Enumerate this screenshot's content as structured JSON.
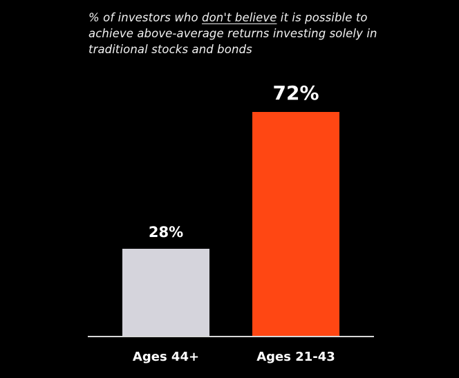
{
  "chart_data": {
    "type": "bar",
    "title_parts": [
      "% of investors who ",
      "don't believe",
      " it is possible to achieve above-average returns investing solely in traditional stocks and bonds"
    ],
    "title": "% of investors who don't believe it is possible to achieve above-average returns investing solely in traditional stocks and bonds",
    "categories": [
      "Ages 44+",
      "Ages 21-43"
    ],
    "values": [
      28,
      72
    ],
    "value_labels": [
      "28%",
      "72%"
    ],
    "colors": [
      "#d5d4dc",
      "#ff4713"
    ],
    "xlabel": "",
    "ylabel": "",
    "ylim": [
      0,
      100
    ],
    "grid": false,
    "legend": "none"
  },
  "colors": {
    "background": "#000000",
    "axis": "#d8d8d8",
    "text": "#ffffff"
  }
}
